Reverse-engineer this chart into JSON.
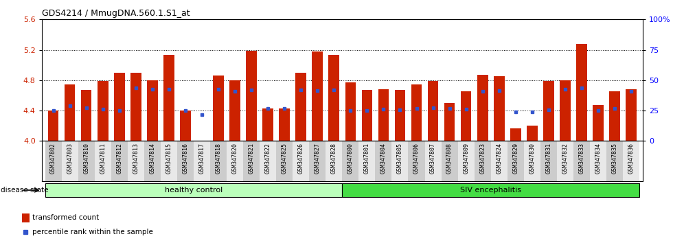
{
  "title": "GDS4214 / MmugDNA.560.1.S1_at",
  "samples": [
    "GSM347802",
    "GSM347803",
    "GSM347810",
    "GSM347811",
    "GSM347812",
    "GSM347813",
    "GSM347814",
    "GSM347815",
    "GSM347816",
    "GSM347817",
    "GSM347818",
    "GSM347820",
    "GSM347821",
    "GSM347822",
    "GSM347825",
    "GSM347826",
    "GSM347827",
    "GSM347828",
    "GSM347800",
    "GSM347801",
    "GSM347804",
    "GSM347805",
    "GSM347806",
    "GSM347807",
    "GSM347808",
    "GSM347809",
    "GSM347823",
    "GSM347824",
    "GSM347829",
    "GSM347830",
    "GSM347831",
    "GSM347832",
    "GSM347833",
    "GSM347834",
    "GSM347835",
    "GSM347836"
  ],
  "red_values": [
    4.4,
    4.74,
    4.67,
    4.79,
    4.9,
    4.9,
    4.8,
    5.13,
    4.4,
    4.0,
    4.86,
    4.8,
    5.19,
    4.43,
    4.43,
    4.9,
    5.18,
    5.13,
    4.77,
    4.67,
    4.68,
    4.67,
    4.74,
    4.79,
    4.5,
    4.65,
    4.87,
    4.85,
    4.17,
    4.2,
    4.79,
    4.8,
    5.28,
    4.47,
    4.65,
    4.68
  ],
  "blue_values": [
    4.4,
    4.46,
    4.44,
    4.42,
    4.4,
    4.7,
    4.68,
    4.68,
    4.4,
    4.35,
    4.68,
    4.65,
    4.67,
    4.43,
    4.43,
    4.67,
    4.66,
    4.67,
    4.4,
    4.4,
    4.42,
    4.41,
    4.43,
    4.44,
    4.43,
    4.42,
    4.65,
    4.66,
    4.38,
    4.38,
    4.41,
    4.68,
    4.7,
    4.4,
    4.43,
    4.65
  ],
  "healthy_control_count": 18,
  "ylim_left": [
    4.0,
    5.6
  ],
  "yticks_left": [
    4.0,
    4.4,
    4.8,
    5.2,
    5.6
  ],
  "ylim_right": [
    0,
    100
  ],
  "yticks_right": [
    0,
    25,
    50,
    75,
    100
  ],
  "yticklabels_right": [
    "0",
    "25",
    "50",
    "75",
    "100%"
  ],
  "bar_color": "#cc2200",
  "dot_color": "#3355cc",
  "healthy_color": "#bbffbb",
  "siv_color": "#44dd44",
  "tick_bg_even": "#cccccc",
  "tick_bg_odd": "#e8e8e8",
  "bar_width": 0.65
}
